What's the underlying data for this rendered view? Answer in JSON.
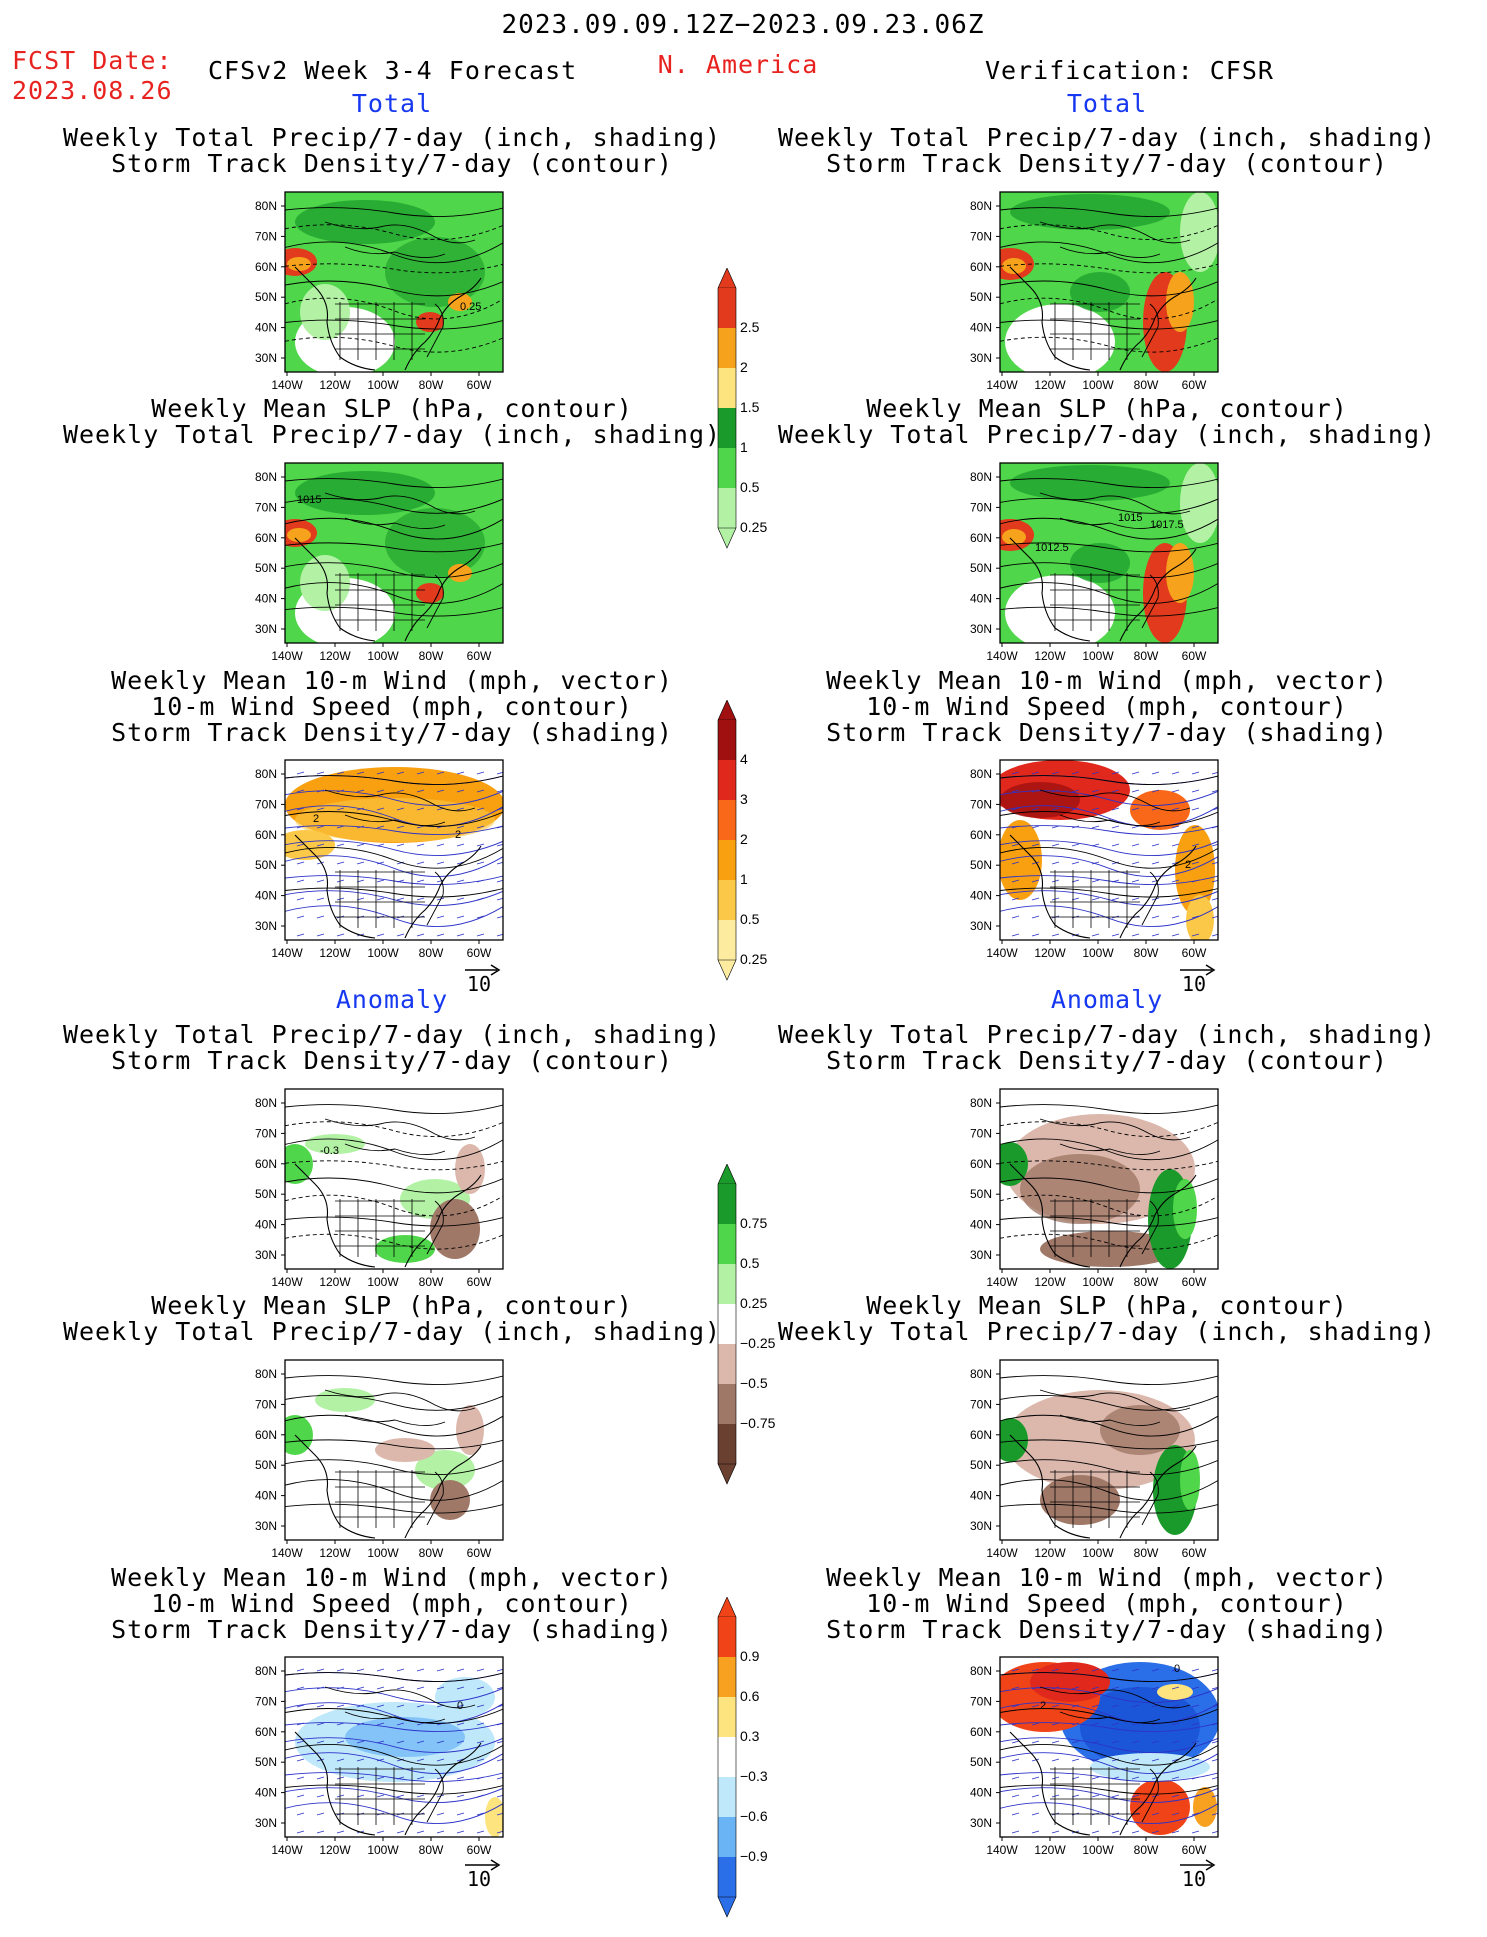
{
  "header": {
    "date_range": "2023.09.09.12Z−2023.09.23.06Z",
    "fcst_label": "FCST Date:",
    "fcst_date": "2023.08.26",
    "model_title": "CFSv2 Week 3-4 Forecast",
    "region": "N. America",
    "verification": "Verification: CFSR"
  },
  "sections": {
    "total": "Total",
    "anomaly": "Anomaly"
  },
  "panel_titles": {
    "precip_storm": [
      "Weekly Total Precip/7-day (inch, shading)",
      "Storm Track Density/7-day (contour)"
    ],
    "slp_precip": [
      "Weekly Mean SLP (hPa, contour)",
      "Weekly Total Precip/7-day (inch, shading)"
    ],
    "wind_storm": [
      "Weekly Mean 10-m Wind (mph, vector)",
      "10-m Wind Speed (mph, contour)",
      "Storm Track Density/7-day (shading)"
    ]
  },
  "axes": {
    "lat_ticks": [
      "80N",
      "70N",
      "60N",
      "50N",
      "40N",
      "30N"
    ],
    "lon_ticks": [
      "140W",
      "120W",
      "100W",
      "80W",
      "60W"
    ]
  },
  "vector_ref": "10",
  "map_labels": {
    "fc_total_precip": "0.25",
    "fc_total_slp": "1015",
    "ob_total_slp": [
      "1015",
      "1017.5",
      "1012.5"
    ],
    "wind_contour": "2",
    "fc_anom_precip": "-0.3",
    "anom_wind_zero": "0"
  },
  "colorbars": {
    "precip_total": {
      "labels": [
        "2.5",
        "2",
        "1.5",
        "1",
        "0.5",
        "0.25"
      ],
      "colors": [
        "#e23a1c",
        "#f6a21c",
        "#fde47f",
        "#1a9a2a",
        "#4fd64a",
        "#b3f2a5"
      ]
    },
    "storm_total": {
      "labels": [
        "4",
        "3",
        "2",
        "1",
        "0.5",
        "0.25"
      ],
      "colors": [
        "#a01010",
        "#e0281c",
        "#f86818",
        "#f8a010",
        "#fcc848",
        "#fdeca0"
      ]
    },
    "precip_anom": {
      "labels": [
        "0.75",
        "0.5",
        "0.25",
        "−0.25",
        "−0.5",
        "−0.75"
      ],
      "colors": [
        "#1a9a2a",
        "#4fd64a",
        "#b3f2a5",
        "#ffffff",
        "#dcb8ac",
        "#a07868",
        "#6a4030"
      ]
    },
    "storm_anom": {
      "labels": [
        "0.9",
        "0.6",
        "0.3",
        "−0.3",
        "−0.6",
        "−0.9"
      ],
      "colors": [
        "#f04418",
        "#f8a020",
        "#fde47f",
        "#ffffff",
        "#bfe8fb",
        "#6ab4f6",
        "#2a6ee8"
      ]
    }
  }
}
